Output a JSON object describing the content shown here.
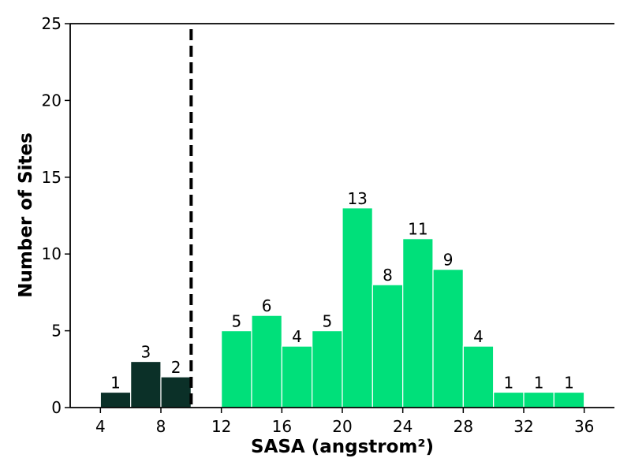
{
  "chart_data": {
    "type": "bar",
    "title": "",
    "xlabel": "SASA (angstrom²)",
    "ylabel": "Number of Sites",
    "xlim": [
      2,
      38
    ],
    "ylim": [
      0,
      25
    ],
    "x_ticks": [
      "4",
      "8",
      "12",
      "16",
      "20",
      "24",
      "28",
      "32",
      "36"
    ],
    "y_ticks": [
      "0",
      "5",
      "10",
      "15",
      "20",
      "25"
    ],
    "bin_width": 2,
    "threshold": 10,
    "colors": {
      "below": "#0b3028",
      "above": "#00e07a",
      "edge": "#ffffff"
    },
    "bins": [
      {
        "x0": 4,
        "x1": 6,
        "count": 1,
        "label": "1"
      },
      {
        "x0": 6,
        "x1": 8,
        "count": 3,
        "label": "3"
      },
      {
        "x0": 8,
        "x1": 10,
        "count": 2,
        "label": "2"
      },
      {
        "x0": 12,
        "x1": 14,
        "count": 5,
        "label": "5"
      },
      {
        "x0": 14,
        "x1": 16,
        "count": 6,
        "label": "6"
      },
      {
        "x0": 16,
        "x1": 18,
        "count": 4,
        "label": "4"
      },
      {
        "x0": 18,
        "x1": 20,
        "count": 5,
        "label": "5"
      },
      {
        "x0": 20,
        "x1": 22,
        "count": 13,
        "label": "13"
      },
      {
        "x0": 22,
        "x1": 24,
        "count": 8,
        "label": "8"
      },
      {
        "x0": 24,
        "x1": 26,
        "count": 11,
        "label": "11"
      },
      {
        "x0": 26,
        "x1": 28,
        "count": 9,
        "label": "9"
      },
      {
        "x0": 28,
        "x1": 30,
        "count": 4,
        "label": "4"
      },
      {
        "x0": 30,
        "x1": 32,
        "count": 1,
        "label": "1"
      },
      {
        "x0": 32,
        "x1": 34,
        "count": 1,
        "label": "1"
      },
      {
        "x0": 34,
        "x1": 36,
        "count": 1,
        "label": "1"
      }
    ]
  }
}
